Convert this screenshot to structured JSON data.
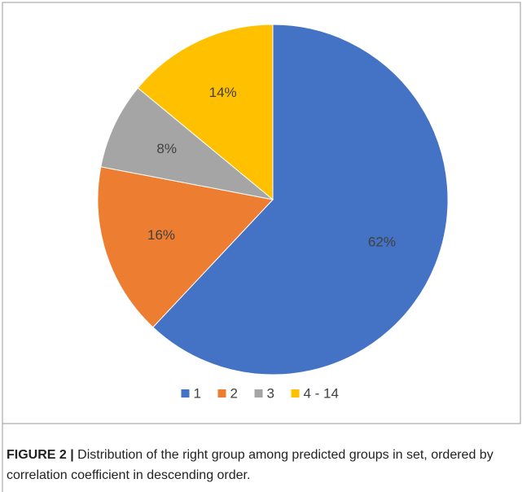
{
  "chart_data": {
    "type": "pie",
    "categories": [
      "1",
      "2",
      "3",
      "4 - 14"
    ],
    "values": [
      62,
      16,
      8,
      14
    ],
    "value_labels": [
      "62%",
      "16%",
      "8%",
      "14%"
    ],
    "colors": [
      "#4472c4",
      "#ed7d31",
      "#a5a5a5",
      "#ffc000"
    ],
    "legend": "bottom",
    "caption_label": "FIGURE 2 |",
    "caption": "Distribution of the right group among predicted groups in set, ordered by correlation coefficient in descending order."
  }
}
